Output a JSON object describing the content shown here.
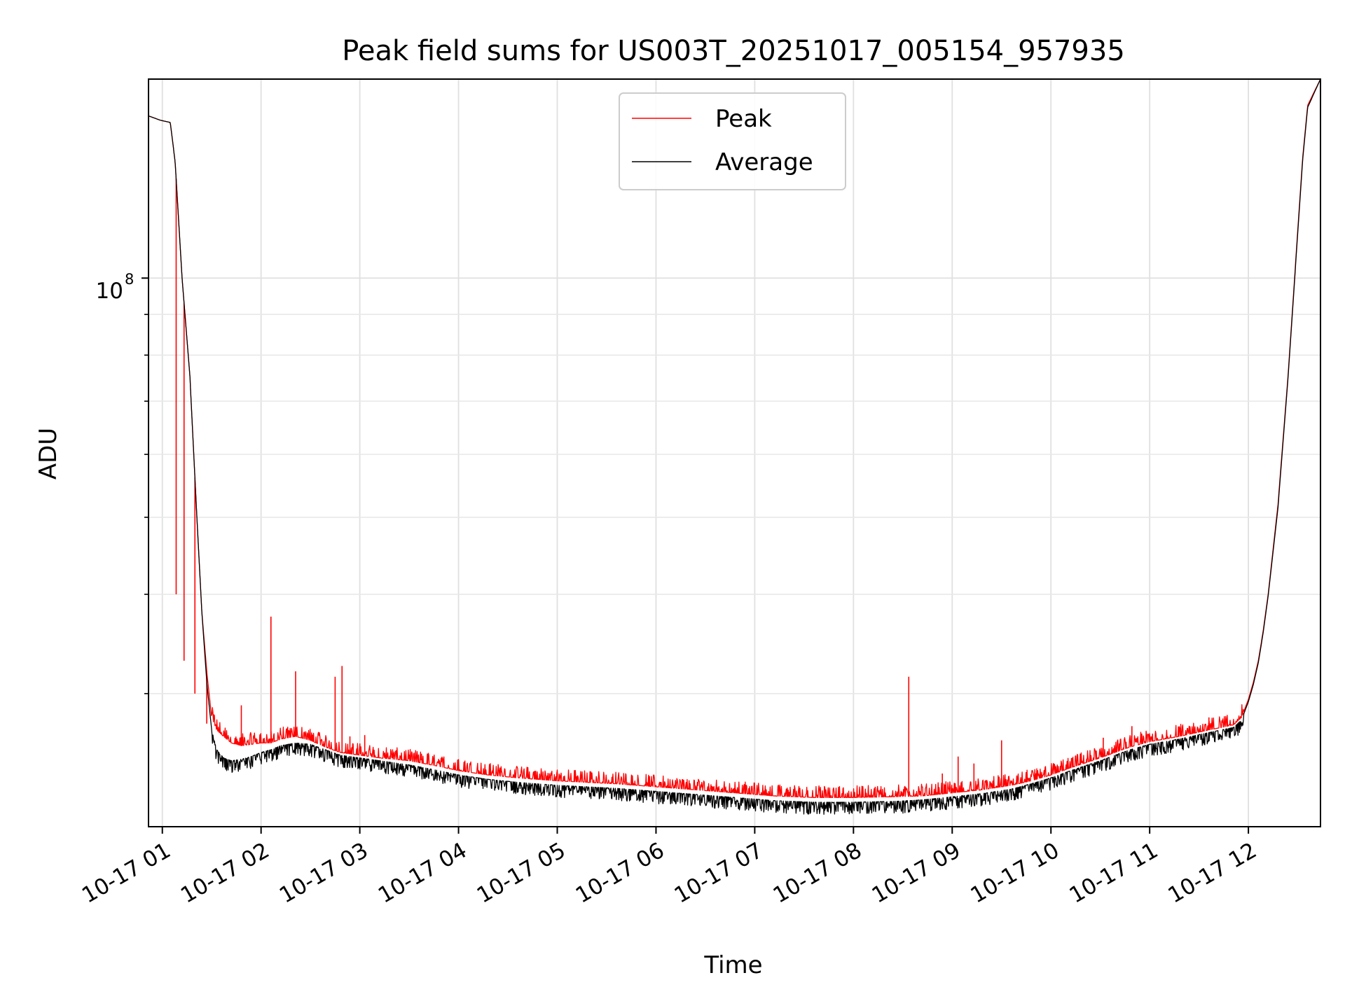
{
  "chart_data": {
    "type": "line",
    "title": "Peak field sums for US003T_20251017_005154_957935",
    "xlabel": "Time",
    "ylabel": "ADU",
    "yscale": "log",
    "ylim": [
      20400000,
      178000000
    ],
    "xlim": [
      0.86,
      12.73
    ],
    "x_ticks": [
      1,
      2,
      3,
      4,
      5,
      6,
      7,
      8,
      9,
      10,
      11,
      12
    ],
    "x_tick_labels": [
      "10-17 01",
      "10-17 02",
      "10-17 03",
      "10-17 04",
      "10-17 05",
      "10-17 06",
      "10-17 07",
      "10-17 08",
      "10-17 09",
      "10-17 10",
      "10-17 11",
      "10-17 12"
    ],
    "y_major_ticks": [
      100000000
    ],
    "y_major_labels": [
      "10",
      "8"
    ],
    "y_minor_ticks": [
      30000000,
      40000000,
      50000000,
      60000000,
      70000000,
      80000000,
      90000000
    ],
    "grid": true,
    "legend": {
      "position": "top-center",
      "entries": [
        "Peak",
        "Average"
      ]
    },
    "colors": {
      "Peak": "#ff0000",
      "Average": "#000000"
    },
    "series": [
      {
        "name": "Peak",
        "x": [
          0.86,
          0.98,
          1.08,
          1.13,
          1.2,
          1.28,
          1.35,
          1.4,
          1.45,
          1.5,
          1.55,
          1.62,
          1.7,
          1.8,
          1.9,
          2.0,
          2.1,
          2.2,
          2.35,
          2.5,
          2.65,
          2.8,
          2.9,
          3.0,
          3.2,
          3.5,
          3.8,
          4.0,
          4.3,
          4.6,
          5.0,
          5.3,
          5.6,
          6.0,
          6.4,
          6.8,
          7.2,
          7.6,
          8.0,
          8.4,
          8.7,
          9.0,
          9.3,
          9.6,
          9.8,
          10.0,
          10.2,
          10.5,
          10.8,
          11.0,
          11.3,
          11.6,
          11.85,
          11.93,
          12.0,
          12.05,
          12.1,
          12.15,
          12.2,
          12.3,
          12.4,
          12.5,
          12.55,
          12.6,
          12.73
        ],
        "y": [
          160000000,
          158000000,
          157000000,
          140000000,
          100000000,
          75000000,
          50000000,
          38000000,
          32000000,
          28000000,
          27000000,
          26500000,
          26000000,
          25800000,
          25900000,
          26000000,
          26000000,
          26300000,
          26500000,
          26200000,
          25700000,
          25300000,
          25200000,
          25100000,
          24900000,
          24700000,
          24300000,
          24000000,
          23700000,
          23500000,
          23300000,
          23200000,
          23100000,
          22900000,
          22700000,
          22500000,
          22300000,
          22200000,
          22200000,
          22250000,
          22300000,
          22500000,
          22700000,
          23000000,
          23300000,
          23700000,
          24200000,
          24900000,
          25700000,
          26100000,
          26500000,
          27000000,
          27400000,
          28000000,
          29500000,
          31000000,
          33000000,
          36000000,
          40000000,
          52000000,
          75000000,
          115000000,
          142000000,
          165000000,
          178000000
        ]
      },
      {
        "name": "Average",
        "x": [
          0.86,
          0.98,
          1.08,
          1.13,
          1.2,
          1.28,
          1.35,
          1.4,
          1.45,
          1.5,
          1.55,
          1.62,
          1.7,
          1.8,
          1.9,
          2.0,
          2.1,
          2.2,
          2.35,
          2.5,
          2.65,
          2.8,
          2.9,
          3.0,
          3.2,
          3.5,
          3.8,
          4.0,
          4.3,
          4.6,
          5.0,
          5.3,
          5.6,
          6.0,
          6.4,
          6.8,
          7.2,
          7.6,
          8.0,
          8.4,
          8.7,
          9.0,
          9.3,
          9.6,
          9.8,
          10.0,
          10.2,
          10.5,
          10.8,
          11.0,
          11.3,
          11.6,
          11.85,
          11.93,
          12.0,
          12.05,
          12.1,
          12.15,
          12.2,
          12.3,
          12.4,
          12.5,
          12.55,
          12.6,
          12.73
        ],
        "y": [
          160000000,
          158000000,
          157000000,
          140000000,
          100000000,
          75000000,
          50000000,
          38000000,
          31000000,
          27000000,
          25500000,
          24900000,
          24700000,
          24800000,
          25000000,
          25300000,
          25500000,
          25800000,
          26000000,
          25900000,
          25500000,
          25100000,
          25000000,
          24900000,
          24700000,
          24400000,
          24000000,
          23700000,
          23400000,
          23200000,
          23000000,
          22900000,
          22800000,
          22600000,
          22400000,
          22200000,
          22000000,
          21900000,
          21900000,
          21950000,
          22050000,
          22250000,
          22450000,
          22750000,
          23100000,
          23500000,
          24000000,
          24700000,
          25500000,
          25900000,
          26300000,
          26800000,
          27200000,
          27800000,
          29300000,
          30800000,
          32800000,
          35800000,
          39800000,
          51500000,
          74500000,
          114000000,
          141000000,
          164000000,
          178000000
        ]
      }
    ],
    "spikes": {
      "name": "Peak",
      "x": [
        1.14,
        1.22,
        1.33,
        1.45,
        1.8,
        2.1,
        2.35,
        2.75,
        2.82,
        2.9,
        3.05,
        8.22,
        8.56,
        8.9,
        9.06,
        9.22,
        9.5,
        10.53,
        10.82,
        11.6
      ],
      "y": [
        40000000,
        33000000,
        30000000,
        27500000,
        29000000,
        37500000,
        32000000,
        31500000,
        32500000,
        26500000,
        26600000,
        22900000,
        31500000,
        23800000,
        25000000,
        24500000,
        26200000,
        26400000,
        27300000,
        28000000
      ]
    }
  }
}
